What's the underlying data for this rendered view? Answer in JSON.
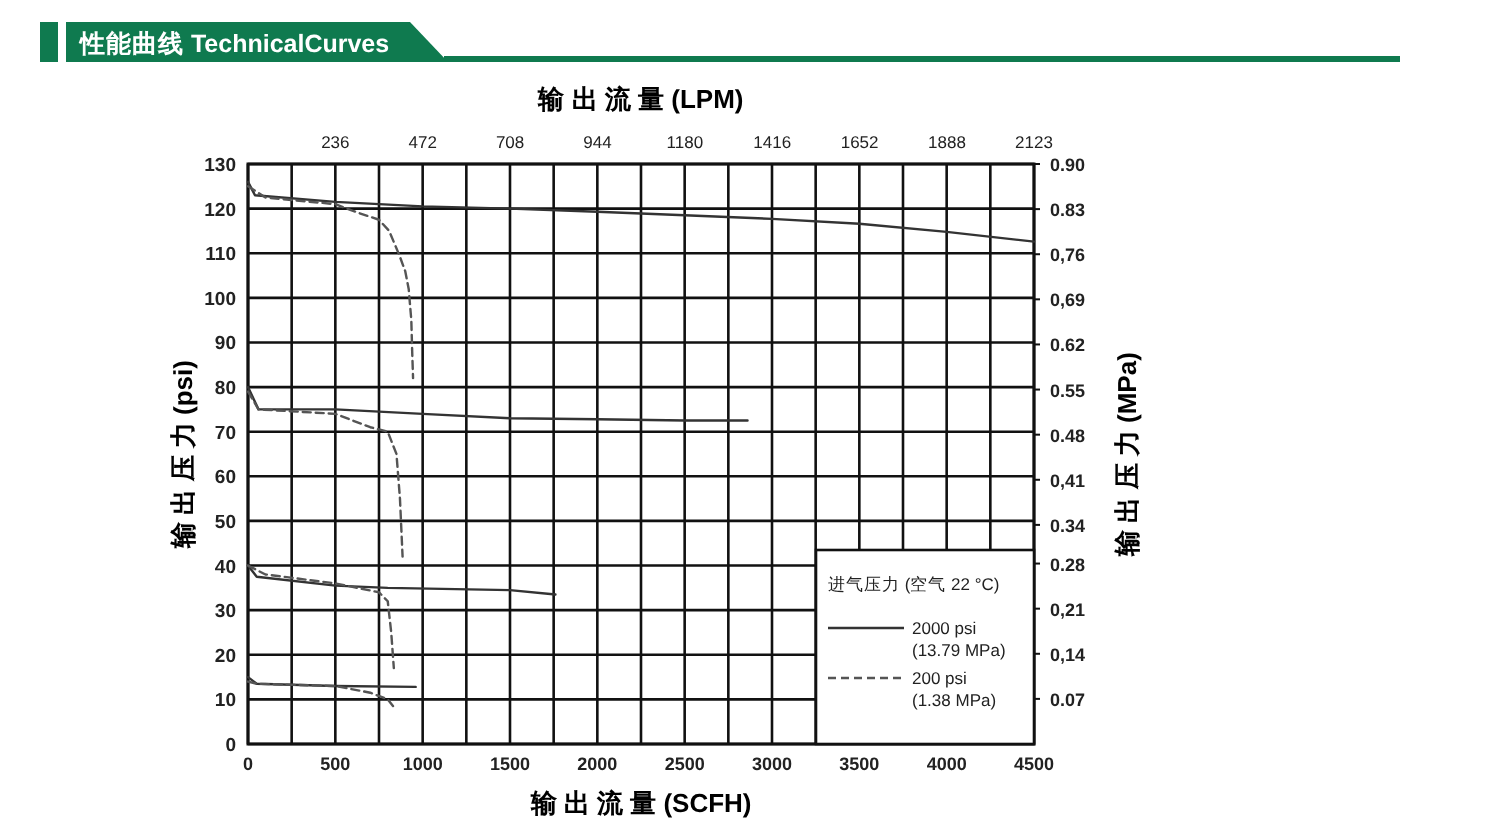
{
  "chart_data": {
    "type": "line",
    "title": "性能曲线 TechnicalCurves",
    "xlabel": "输 出 流 量 (SCFH)",
    "x2label": "输 出 流 量 (LPM)",
    "ylabel": "输 出 压 力 (psi)",
    "y2label": "输 出 压 力 (MPa)",
    "legend_title": "进气压力 (空气 22 °C)",
    "xlim": [
      0,
      4500
    ],
    "xticks": [
      0,
      {
        "value": 250,
        "label": null
      },
      500,
      {
        "value": 750,
        "label": null
      },
      1000,
      {
        "value": 1250,
        "label": null
      },
      1500,
      {
        "value": 1750,
        "label": null
      },
      2000,
      {
        "value": 2250,
        "label": null
      },
      2500,
      {
        "value": 2750,
        "label": null
      },
      3000,
      {
        "value": 3250,
        "label": null
      },
      3500,
      {
        "value": 3750,
        "label": null
      },
      4000,
      {
        "value": 4250,
        "label": null
      },
      4500
    ],
    "x2lim": [
      0,
      2123
    ],
    "x2ticks": [
      236,
      472,
      708,
      944,
      1180,
      1416,
      1652,
      1888,
      2123
    ],
    "ylim": [
      0,
      130
    ],
    "yticks": [
      0,
      10,
      20,
      30,
      40,
      50,
      60,
      70,
      80,
      90,
      100,
      110,
      120,
      130
    ],
    "y2lim": [
      0,
      0.9
    ],
    "y2ticks": [
      {
        "value": 0.07,
        "label": "0.07"
      },
      {
        "value": 0.14,
        "label": "0,14"
      },
      {
        "value": 0.21,
        "label": "0,21"
      },
      {
        "value": 0.28,
        "label": "0.28"
      },
      {
        "value": 0.34,
        "label": "0.34"
      },
      {
        "value": 0.41,
        "label": "0,41"
      },
      {
        "value": 0.48,
        "label": "0.48"
      },
      {
        "value": 0.55,
        "label": "0.55"
      },
      {
        "value": 0.62,
        "label": "0.62"
      },
      {
        "value": 0.69,
        "label": "0,69"
      },
      {
        "value": 0.76,
        "label": "0,76"
      },
      {
        "value": 0.83,
        "label": "0.83"
      },
      {
        "value": 0.9,
        "label": "0.90"
      }
    ],
    "grid": true,
    "legend": "bottom right",
    "series": [
      {
        "name": "2000 psi\n(13.79 MPa)",
        "color": "#333333",
        "line_style": "solid",
        "x": [
          0,
          40,
          500,
          1000,
          1500,
          2000,
          2500,
          3000,
          3500,
          4000,
          4500
        ],
        "values": [
          126,
          123,
          121.5,
          120.5,
          120,
          119.3,
          118.5,
          117.7,
          116.6,
          114.8,
          112.6
        ]
      },
      {
        "name": "200 psi\n(1.38 MPa)",
        "color": "#555555",
        "line_style": "dashed",
        "x": [
          0,
          100,
          500,
          635,
          750,
          808,
          866,
          900,
          920,
          935,
          940,
          945
        ],
        "values": [
          125,
          122.5,
          121,
          119,
          117.5,
          115,
          109.6,
          106,
          102,
          95,
          88,
          82
        ]
      },
      {
        "color": "#333333",
        "line_style": "solid",
        "x": [
          0,
          60,
          500,
          1000,
          1500,
          2000,
          2500,
          2860
        ],
        "values": [
          80,
          75,
          75,
          74,
          73,
          72.8,
          72.5,
          72.5
        ]
      },
      {
        "color": "#555555",
        "line_style": "dashed",
        "x": [
          0,
          60,
          500,
          700,
          800,
          850,
          870,
          885
        ],
        "values": [
          79,
          75,
          74,
          71,
          70,
          65,
          55,
          42
        ]
      },
      {
        "color": "#333333",
        "line_style": "solid",
        "x": [
          0,
          50,
          500,
          800,
          1500,
          1760
        ],
        "values": [
          40,
          37.5,
          35.5,
          35,
          34.5,
          33.5
        ]
      },
      {
        "color": "#555555",
        "line_style": "dashed",
        "x": [
          0,
          100,
          500,
          750,
          800,
          820,
          835
        ],
        "values": [
          40,
          38,
          36,
          34,
          32,
          25,
          17
        ]
      },
      {
        "color": "#333333",
        "line_style": "solid",
        "x": [
          0,
          50,
          500,
          960
        ],
        "values": [
          15,
          13.5,
          13,
          12.8
        ]
      },
      {
        "color": "#555555",
        "line_style": "dashed",
        "x": [
          0,
          50,
          500,
          700,
          800,
          830
        ],
        "values": [
          14,
          13.5,
          13,
          11.5,
          10,
          8.5
        ]
      }
    ]
  }
}
